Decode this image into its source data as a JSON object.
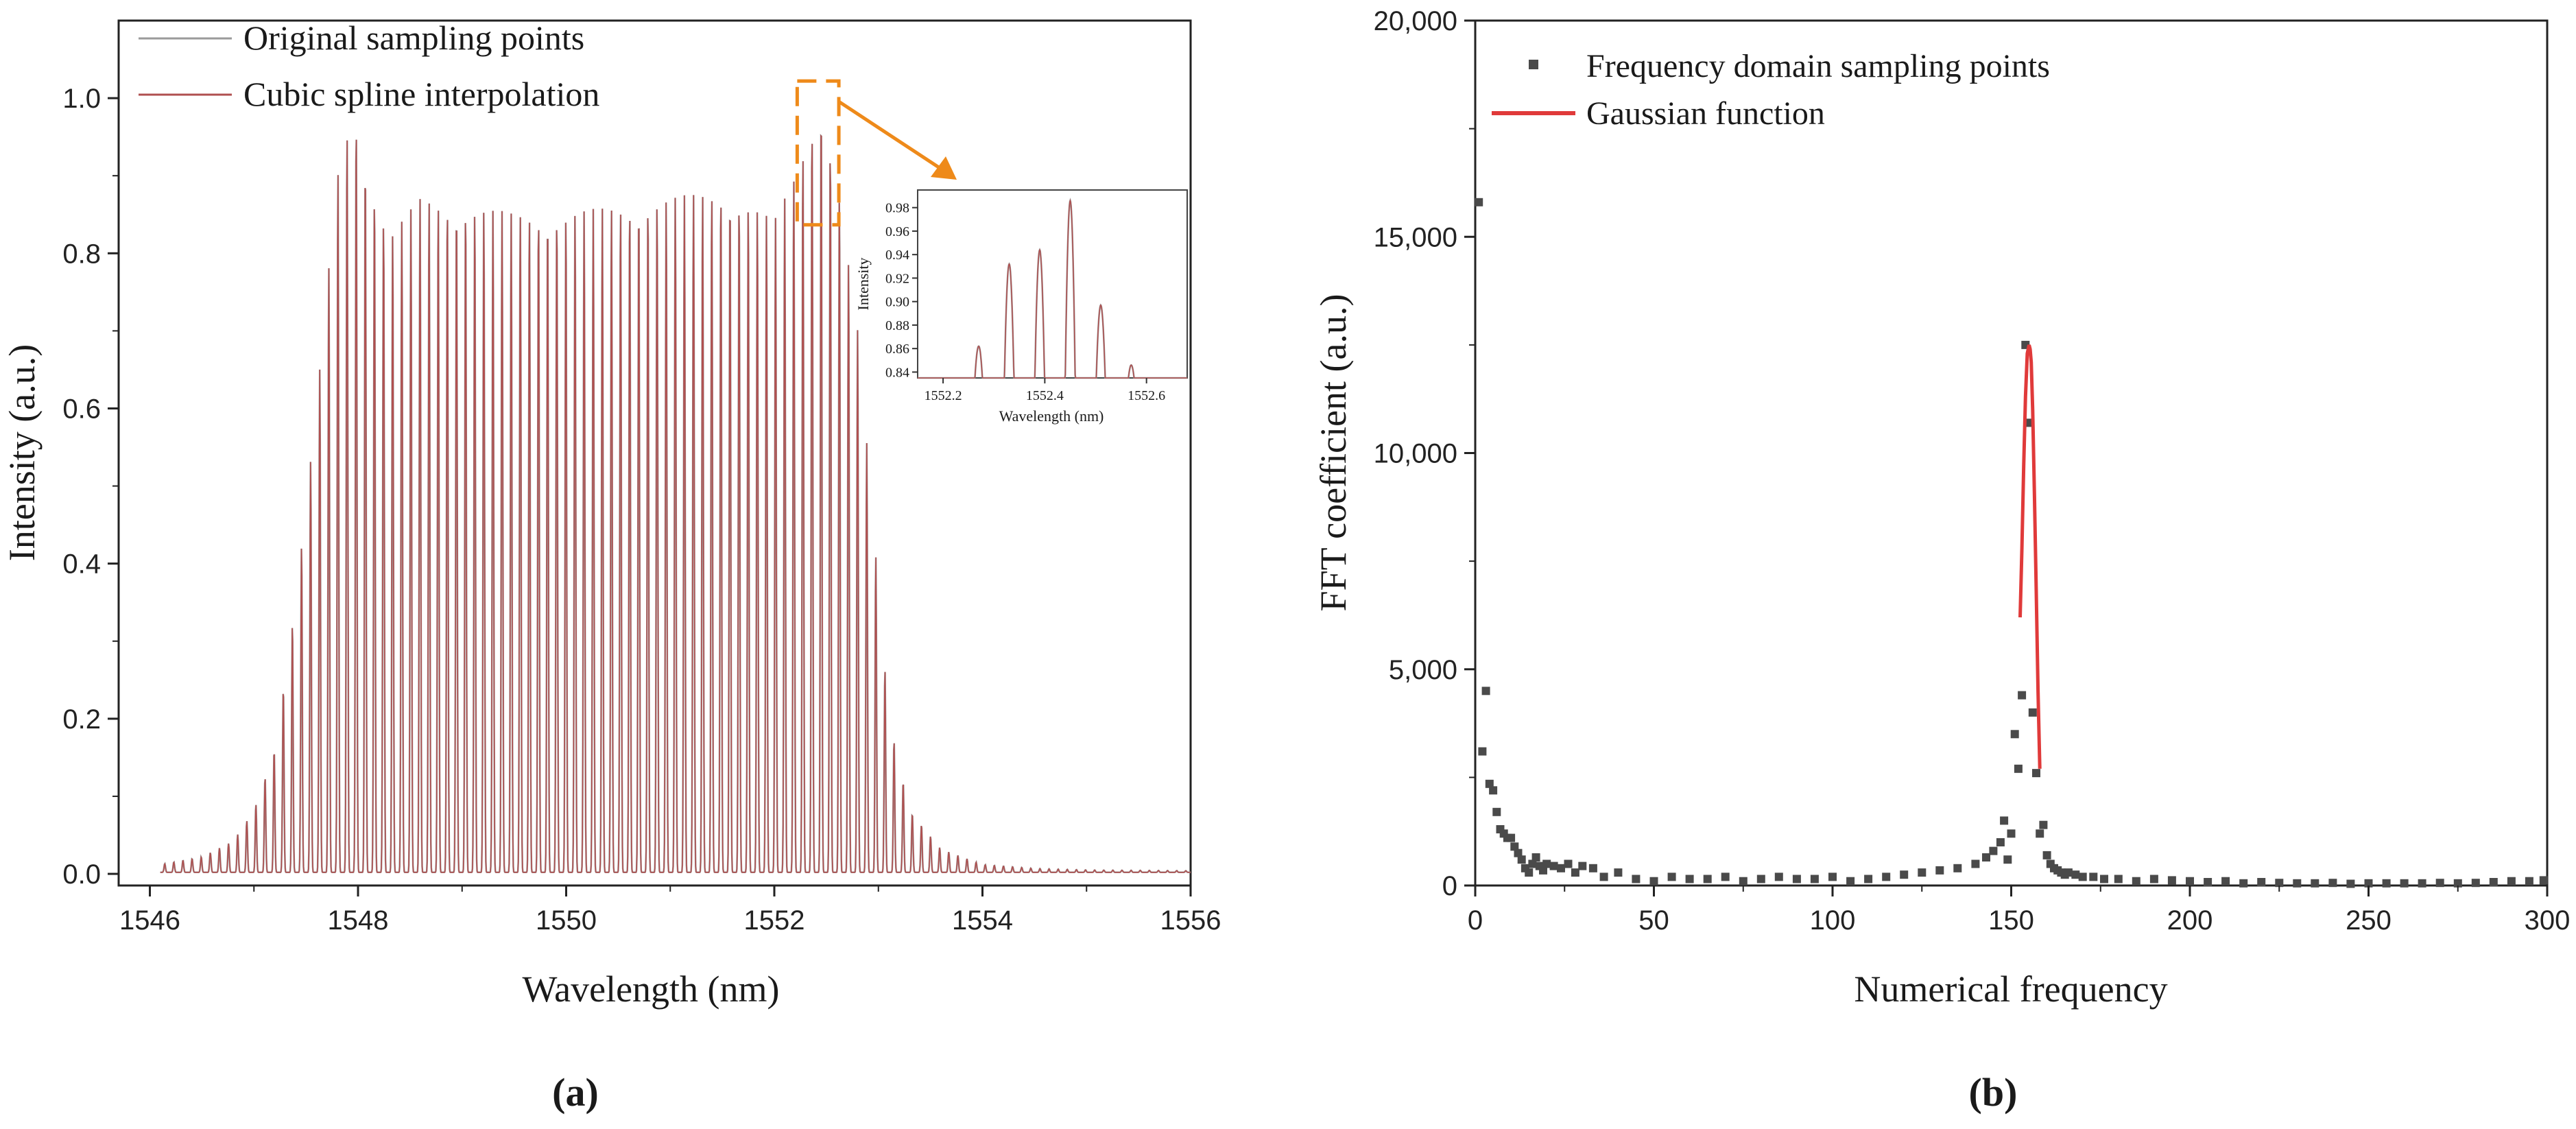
{
  "chart_data": [
    {
      "panel": "a",
      "type": "line",
      "panel_label": "(a)",
      "xlabel": "Wavelength (nm)",
      "ylabel": "Intensity (a.u.)",
      "xlim": [
        1545.7,
        1556
      ],
      "ylim": [
        -0.015,
        1.1
      ],
      "xticks": [
        1546,
        1548,
        1550,
        1552,
        1554,
        1556
      ],
      "xtick_labels": [
        "1546",
        "1548",
        "1550",
        "1552",
        "1554",
        "1556"
      ],
      "yticks": [
        0.0,
        0.2,
        0.4,
        0.6,
        0.8,
        1.0
      ],
      "ytick_labels": [
        "0.0",
        "0.2",
        "0.4",
        "0.6",
        "0.8",
        "1.0"
      ],
      "legend_position": "top-left",
      "series": [
        {
          "name": "Original sampling points",
          "color": "#9a9a9a"
        },
        {
          "name": "Cubic spline interpolation",
          "color": "#b05050"
        }
      ],
      "fringe_period_nm": 0.0876,
      "envelope": {
        "x": [
          1546.1,
          1546.5,
          1546.8,
          1547.0,
          1547.2,
          1547.4,
          1547.6,
          1547.8,
          1547.95,
          1548.1,
          1548.3,
          1548.6,
          1549.0,
          1549.5,
          1550.0,
          1550.5,
          1551.0,
          1551.5,
          1551.8,
          1552.0,
          1552.2,
          1552.35,
          1552.45,
          1552.6,
          1552.8,
          1552.95,
          1553.1,
          1553.3,
          1553.6,
          1554.0,
          1554.5,
          1555.0,
          1556.0
        ],
        "y": [
          0.01,
          0.02,
          0.04,
          0.08,
          0.16,
          0.35,
          0.6,
          0.9,
          0.99,
          0.9,
          0.82,
          0.87,
          0.86,
          0.85,
          0.85,
          0.86,
          0.87,
          0.88,
          0.86,
          0.84,
          0.9,
          0.96,
          0.99,
          0.9,
          0.7,
          0.45,
          0.2,
          0.08,
          0.03,
          0.01,
          0.005,
          0.003,
          0.002
        ]
      },
      "annotation": {
        "type": "zoom-box",
        "x_range": [
          1552.22,
          1552.62
        ],
        "y_range": [
          0.85,
          1.0
        ],
        "color": "#ee8a1a"
      }
    },
    {
      "panel": "a-inset",
      "type": "line",
      "xlabel": "Wavelength (nm)",
      "ylabel": "Intensity",
      "xlim": [
        1552.15,
        1552.68
      ],
      "ylim": [
        0.835,
        0.995
      ],
      "xticks": [
        1552.2,
        1552.4,
        1552.6
      ],
      "xtick_labels": [
        "1552.2",
        "1552.4",
        "1552.6"
      ],
      "yticks": [
        0.84,
        0.86,
        0.88,
        0.9,
        0.92,
        0.94,
        0.96,
        0.98
      ],
      "ytick_labels": [
        "0.84",
        "0.86",
        "0.88",
        "0.90",
        "0.92",
        "0.94",
        "0.96",
        "0.98"
      ],
      "peaks": [
        {
          "x": 1552.27,
          "y": 0.862
        },
        {
          "x": 1552.33,
          "y": 0.932
        },
        {
          "x": 1552.39,
          "y": 0.944
        },
        {
          "x": 1552.45,
          "y": 0.986
        },
        {
          "x": 1552.51,
          "y": 0.897
        },
        {
          "x": 1552.57,
          "y": 0.846
        }
      ]
    },
    {
      "panel": "b",
      "type": "scatter",
      "panel_label": "(b)",
      "xlabel": "Numerical frequency",
      "ylabel": "FFT coefficient (a.u.)",
      "xlim": [
        0,
        300
      ],
      "ylim": [
        0,
        20000
      ],
      "xticks": [
        0,
        50,
        100,
        150,
        200,
        250,
        300
      ],
      "xtick_labels": [
        "0",
        "50",
        "100",
        "150",
        "200",
        "250",
        "300"
      ],
      "yticks": [
        0,
        5000,
        10000,
        15000,
        20000
      ],
      "ytick_labels": [
        "0",
        "5,000",
        "10,000",
        "15,000",
        "20,000"
      ],
      "legend_position": "top-left",
      "series": [
        {
          "name": "Frequency domain sampling points",
          "color": "#4a4a4a",
          "x": [
            1,
            2,
            3,
            4,
            5,
            6,
            7,
            8,
            9,
            10,
            11,
            12,
            13,
            14,
            15,
            16,
            17,
            18,
            19,
            20,
            22,
            24,
            26,
            28,
            30,
            33,
            36,
            40,
            45,
            50,
            55,
            60,
            65,
            70,
            75,
            80,
            85,
            90,
            95,
            100,
            105,
            110,
            115,
            120,
            125,
            130,
            135,
            140,
            143,
            145,
            147,
            148,
            149,
            150,
            151,
            152,
            153,
            154,
            155,
            156,
            157,
            158,
            159,
            160,
            161,
            162,
            163,
            164,
            165,
            166,
            168,
            170,
            173,
            176,
            180,
            185,
            190,
            195,
            200,
            205,
            210,
            215,
            220,
            225,
            230,
            235,
            240,
            245,
            250,
            255,
            260,
            265,
            270,
            275,
            280,
            285,
            290,
            295,
            299
          ],
          "y": [
            15800,
            3100,
            4500,
            2350,
            2200,
            1700,
            1300,
            1200,
            1100,
            1100,
            900,
            750,
            600,
            400,
            300,
            500,
            650,
            450,
            350,
            500,
            450,
            400,
            500,
            300,
            450,
            400,
            200,
            300,
            150,
            100,
            200,
            150,
            150,
            200,
            100,
            150,
            200,
            150,
            150,
            200,
            100,
            150,
            200,
            250,
            300,
            350,
            400,
            500,
            650,
            800,
            1000,
            1500,
            600,
            1200,
            3500,
            2700,
            4400,
            12500,
            10700,
            4000,
            2600,
            1200,
            1400,
            700,
            500,
            400,
            350,
            300,
            250,
            300,
            250,
            200,
            200,
            150,
            150,
            100,
            150,
            120,
            100,
            80,
            100,
            50,
            80,
            60,
            50,
            50,
            60,
            40,
            50,
            50,
            50,
            50,
            60,
            50,
            60,
            80,
            100,
            100,
            120
          ]
        },
        {
          "name": "Gaussian function",
          "color": "#e03a3a",
          "x": [
            152.5,
            153.0,
            153.5,
            154.0,
            154.5,
            155.0,
            155.3,
            155.6,
            156.0,
            156.5,
            157.0,
            157.5,
            158.0
          ],
          "y": [
            6200,
            7800,
            9700,
            11300,
            12300,
            12500,
            12400,
            12100,
            11000,
            9000,
            6800,
            4500,
            2700
          ]
        }
      ]
    }
  ]
}
